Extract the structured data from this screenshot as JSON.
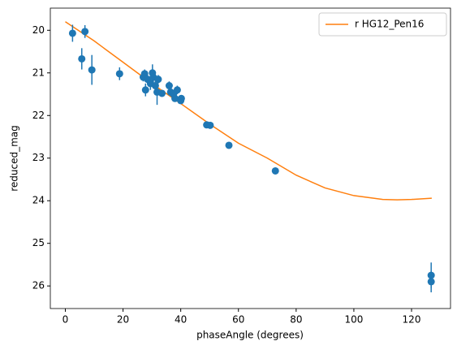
{
  "chart_data": {
    "type": "line",
    "xlabel": "phaseAngle (degrees)",
    "ylabel": "reduced_mag",
    "xlim": [
      -5.2,
      133.5
    ],
    "ylim": [
      26.53,
      19.48
    ],
    "xticks": [
      0,
      20,
      40,
      60,
      80,
      100,
      120
    ],
    "yticks": [
      20,
      21,
      22,
      23,
      24,
      25,
      26
    ],
    "grid": false,
    "legend": "upper right",
    "series": [
      {
        "name": "r HG12_Pen16",
        "type": "line",
        "color": "#ff7f0e",
        "x": [
          0,
          10,
          20,
          30,
          40,
          50,
          60,
          70,
          80,
          90,
          100,
          110,
          115,
          120,
          127
        ],
        "values": [
          19.8,
          20.25,
          20.75,
          21.25,
          21.72,
          22.2,
          22.65,
          23.0,
          23.4,
          23.7,
          23.88,
          23.97,
          23.98,
          23.97,
          23.94
        ]
      },
      {
        "type": "errorbar",
        "color": "#1f77b4",
        "x": [
          2.5,
          6.8,
          5.7,
          9.2,
          18.8,
          27,
          27.5,
          27.8,
          28.5,
          29.5,
          30.2,
          30.5,
          31.2,
          31.8,
          32.2,
          33.5,
          36,
          36.5,
          37.5,
          38,
          38.8,
          40,
          40.2,
          49,
          50.2,
          56.7,
          72.8,
          126.8,
          126.8
        ],
        "values": [
          20.07,
          20.03,
          20.67,
          20.93,
          21.02,
          21.1,
          21.02,
          21.4,
          21.15,
          21.25,
          21.0,
          21.1,
          21.3,
          21.45,
          21.15,
          21.48,
          21.3,
          21.45,
          21.5,
          21.6,
          21.4,
          21.65,
          21.6,
          22.22,
          22.23,
          22.7,
          23.3,
          25.75,
          25.9
        ],
        "errors": [
          0.2,
          0.15,
          0.25,
          0.35,
          0.15,
          0.1,
          0.1,
          0.15,
          0.1,
          0.15,
          0.2,
          0.15,
          0.2,
          0.3,
          0.1,
          0.08,
          0.1,
          0.1,
          0.1,
          0.08,
          0.1,
          0.08,
          0.08,
          0.05,
          0.05,
          0.05,
          0.05,
          0.3,
          0.25
        ]
      }
    ]
  }
}
